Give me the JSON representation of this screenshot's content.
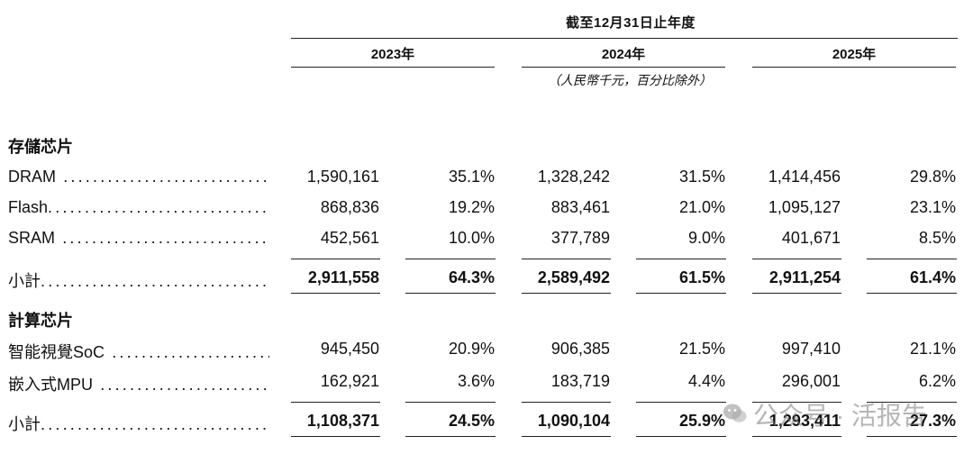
{
  "header": {
    "period": "截至12月31日止年度",
    "years": [
      "2023年",
      "2024年",
      "2025年"
    ],
    "unit_note": "（人民幣千元，百分比除外）"
  },
  "sections": [
    {
      "title": "存儲芯片",
      "rows": [
        {
          "label": "DRAM",
          "values": [
            "1,590,161",
            "35.1%",
            "1,328,242",
            "31.5%",
            "1,414,456",
            "29.8%"
          ]
        },
        {
          "label": "Flash",
          "values": [
            "868,836",
            "19.2%",
            "883,461",
            "21.0%",
            "1,095,127",
            "23.1%"
          ]
        },
        {
          "label": "SRAM",
          "values": [
            "452,561",
            "10.0%",
            "377,789",
            "9.0%",
            "401,671",
            "8.5%"
          ]
        }
      ],
      "subtotal": {
        "label": "小計",
        "values": [
          "2,911,558",
          "64.3%",
          "2,589,492",
          "61.5%",
          "2,911,254",
          "61.4%"
        ]
      }
    },
    {
      "title": "計算芯片",
      "rows": [
        {
          "label": "智能視覺SoC",
          "values": [
            "945,450",
            "20.9%",
            "906,385",
            "21.5%",
            "997,410",
            "21.1%"
          ]
        },
        {
          "label": "嵌入式MPU",
          "values": [
            "162,921",
            "3.6%",
            "183,719",
            "4.4%",
            "296,001",
            "6.2%"
          ]
        }
      ],
      "subtotal": {
        "label": "小計",
        "values": [
          "1,108,371",
          "24.5%",
          "1,090,104",
          "25.9%",
          "1,293,411",
          "27.3%"
        ]
      }
    }
  ],
  "watermark": {
    "text": "公众号 · 活报告",
    "icon": "wechat-icon"
  }
}
